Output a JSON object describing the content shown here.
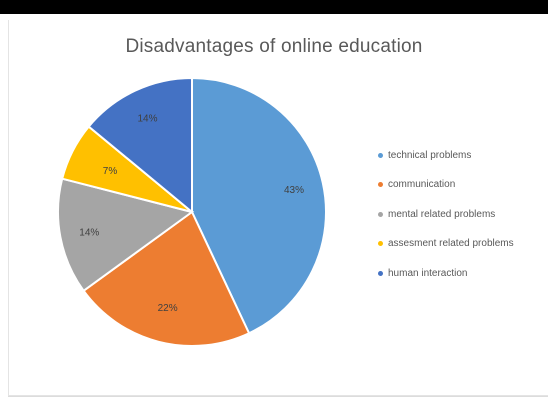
{
  "chart_data": {
    "type": "pie",
    "title": "Disadvantages of online education",
    "categories": [
      "technical problems",
      "communication",
      "mental related problems",
      "assesment related problems",
      "human interaction"
    ],
    "values": [
      43,
      22,
      14,
      7,
      14
    ],
    "labels": [
      "43%",
      "22%",
      "14%",
      "7%",
      "14%"
    ],
    "colors": [
      "#5b9bd5",
      "#ed7d31",
      "#a5a5a5",
      "#ffc000",
      "#4472c4"
    ],
    "legend_position": "right",
    "start_angle": "12 o'clock",
    "direction": "clockwise"
  }
}
